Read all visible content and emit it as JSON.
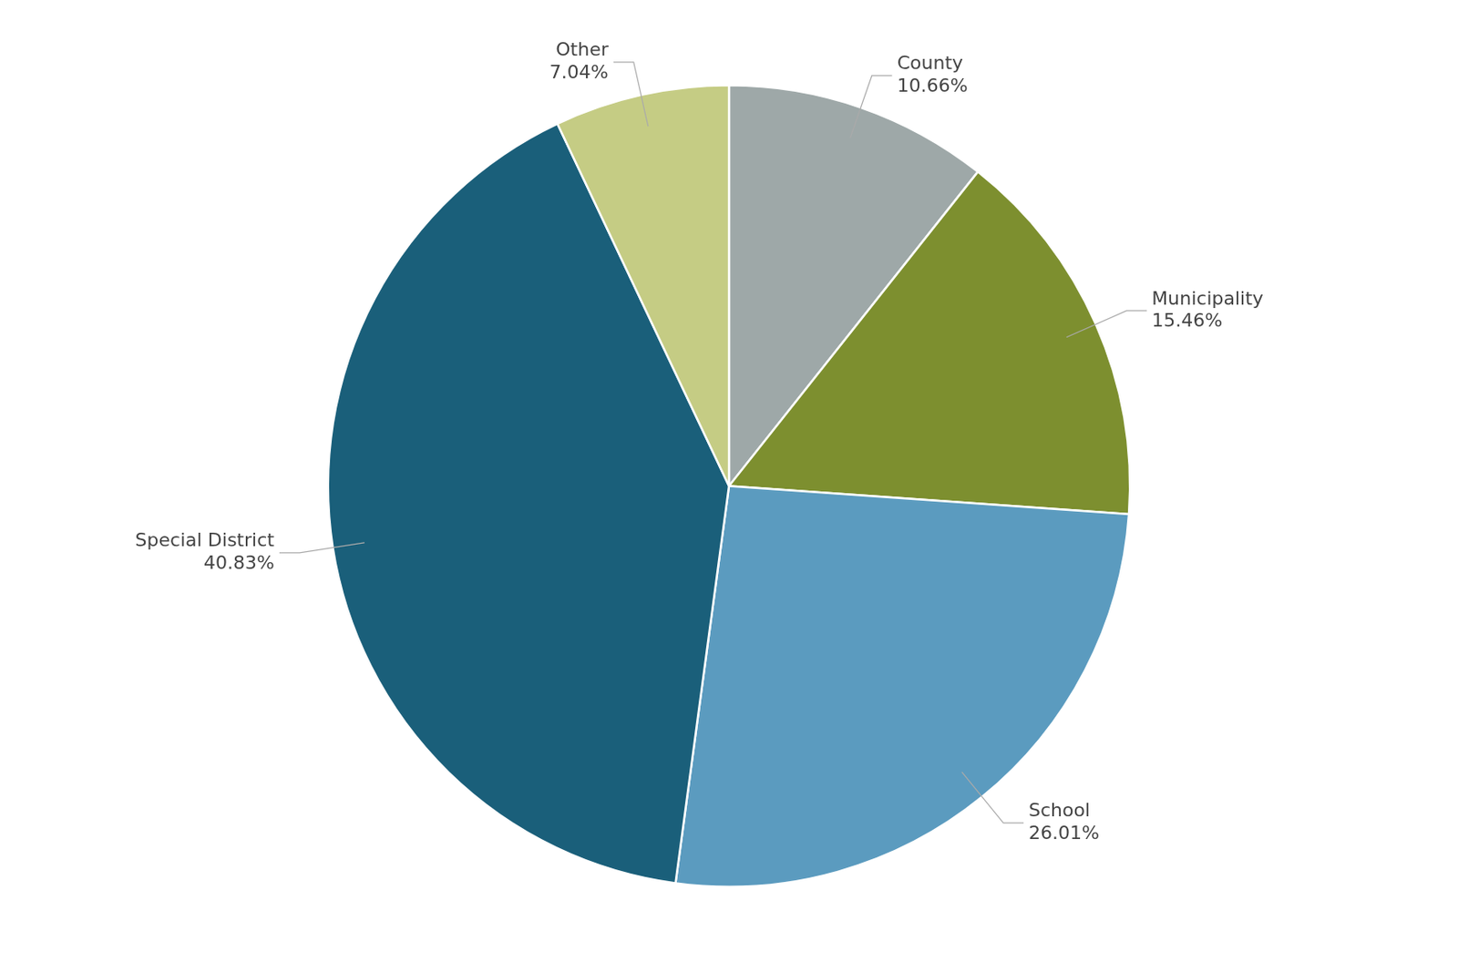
{
  "chart_data": {
    "type": "pie",
    "categories": [
      "County",
      "Municipality",
      "School",
      "Special District",
      "Other"
    ],
    "values": [
      10.66,
      15.46,
      26.01,
      40.83,
      7.04
    ],
    "value_labels": [
      "10.66%",
      "15.46%",
      "26.01%",
      "40.83%",
      "7.04%"
    ],
    "colors": [
      "#9ea8a8",
      "#7d8f2f",
      "#5b9bbf",
      "#1a5f7a",
      "#c5cc84"
    ],
    "data_labels": true
  }
}
